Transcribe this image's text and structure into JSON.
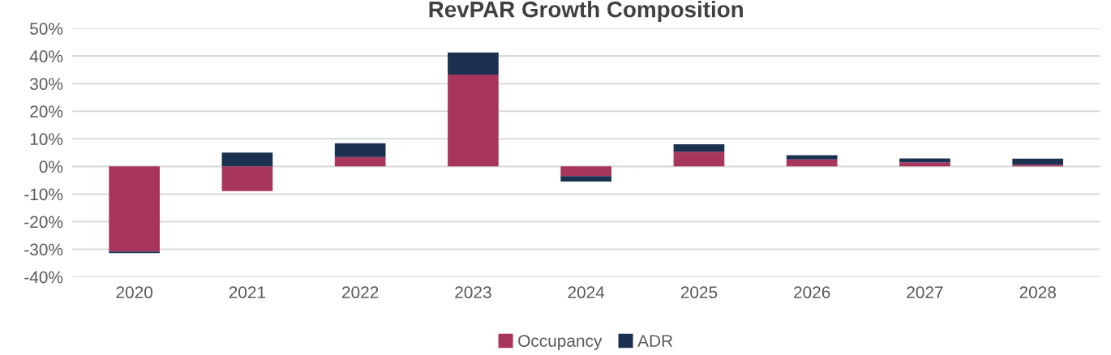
{
  "chart_data": {
    "type": "bar",
    "title": "RevPAR Growth Composition",
    "stacked": true,
    "categories": [
      "2020",
      "2021",
      "2022",
      "2023",
      "2024",
      "2025",
      "2026",
      "2027",
      "2028"
    ],
    "series": [
      {
        "name": "Occupancy",
        "color": "#a8355e",
        "values": [
          -30.8,
          -8.9,
          3.4,
          33.3,
          -3.5,
          5.3,
          2.5,
          1.5,
          0.6
        ]
      },
      {
        "name": "ADR",
        "color": "#1c3050",
        "values": [
          -0.6,
          5.0,
          5.0,
          8.0,
          -2.0,
          2.7,
          1.6,
          1.4,
          2.2
        ]
      }
    ],
    "ylim": [
      -40,
      50
    ],
    "yticks": [
      {
        "value": -40,
        "label": "-40%"
      },
      {
        "value": -30,
        "label": "-30%"
      },
      {
        "value": -20,
        "label": "-20%"
      },
      {
        "value": -10,
        "label": "-10%"
      },
      {
        "value": 0,
        "label": "0%"
      },
      {
        "value": 10,
        "label": "10%"
      },
      {
        "value": 20,
        "label": "20%"
      },
      {
        "value": 30,
        "label": "30%"
      },
      {
        "value": 40,
        "label": "40%"
      },
      {
        "value": 50,
        "label": "50%"
      }
    ],
    "grid": "y",
    "legend": "bottom"
  }
}
